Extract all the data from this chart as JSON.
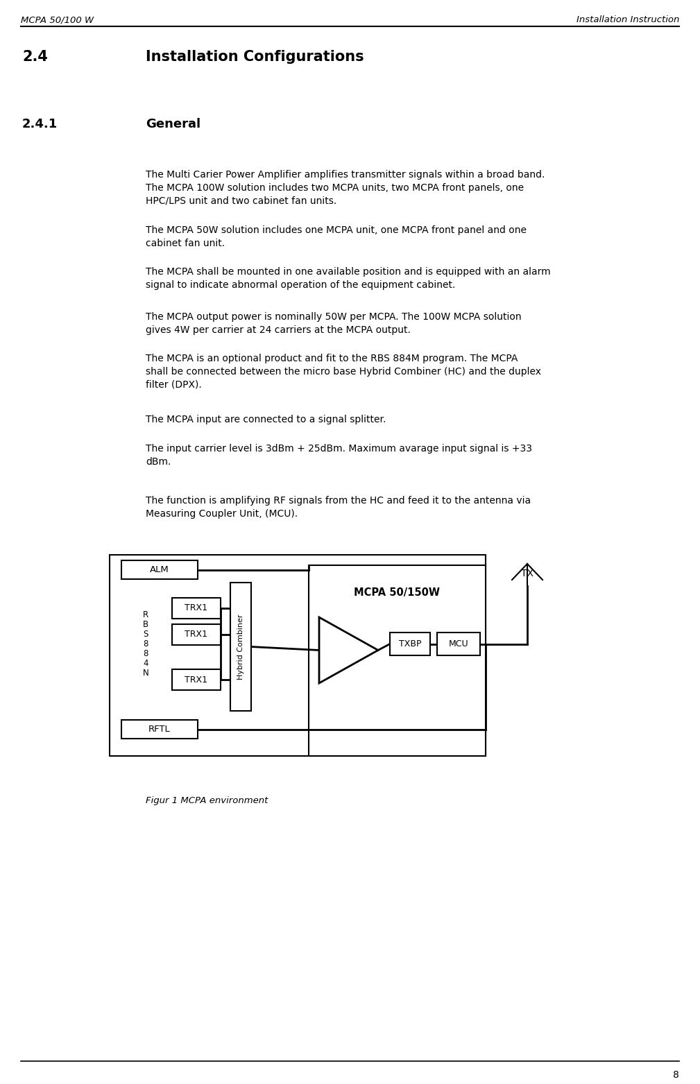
{
  "header_left": "MCPA 50/100 W",
  "header_right": "Installation Instruction",
  "section_number": "2.4",
  "section_title": "Installation Configurations",
  "subsection_number": "2.4.1",
  "subsection_title": "General",
  "paragraphs": [
    "The Multi Carier Power Amplifier amplifies transmitter signals within a broad band.\nThe MCPA 100W solution includes two MCPA units, two MCPA front panels, one\nHPC/LPS unit and two cabinet fan units.",
    "The MCPA 50W solution includes one MCPA unit, one MCPA front panel and one\ncabinet fan unit.",
    "The MCPA shall be mounted in one available position and is equipped with an alarm\nsignal to indicate abnormal operation of the equipment cabinet.",
    "The MCPA output power is nominally 50W per MCPA. The 100W MCPA solution\ngives 4W per carrier at 24 carriers at the MCPA output.",
    "The MCPA is an optional product and fit to the RBS 884M program. The MCPA\nshall be connected between the micro base Hybrid Combiner (HC) and the duplex\nfilter (DPX).",
    "The MCPA input are connected to a signal splitter.",
    "The input carrier level is 3dBm + 25dBm. Maximum avarage input signal is +33\ndBm.",
    "The function is amplifying RF signals from the HC and feed it to the antenna via\nMeasuring Coupler Unit, (MCU)."
  ],
  "figure_caption": "Figur 1 MCPA environment",
  "page_number": "8",
  "background_color": "#ffffff",
  "text_color": "#000000"
}
